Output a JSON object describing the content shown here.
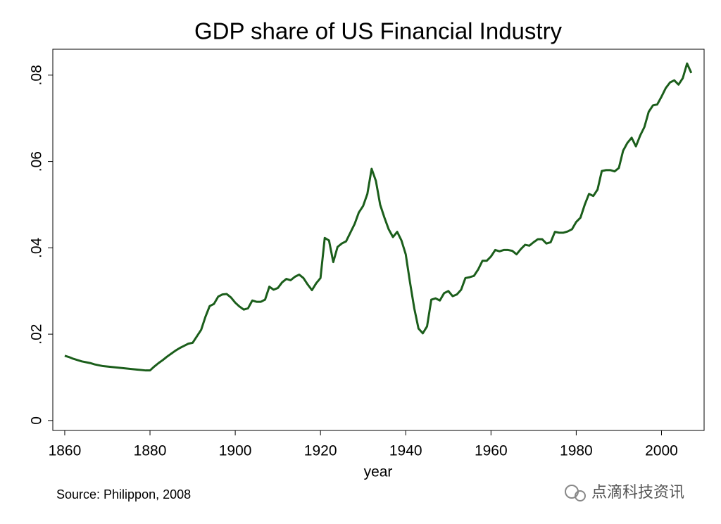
{
  "chart_data": {
    "type": "line",
    "title": "GDP share of US Financial Industry",
    "x_label": "year",
    "note": "Source: Philippon, 2008",
    "watermark": "点滴科技资讯",
    "xlim": [
      1857.2,
      2010
    ],
    "ylim": [
      -0.0023,
      0.086
    ],
    "xticks": [
      1860,
      1880,
      1900,
      1920,
      1940,
      1960,
      1980,
      2000
    ],
    "yticks": [
      0,
      {
        "value": 0.02,
        "label": ".02"
      },
      {
        "value": 0.04,
        "label": ".04"
      },
      {
        "value": 0.06,
        "label": ".06"
      },
      {
        "value": 0.08,
        "label": ".08"
      }
    ],
    "x": [
      1860,
      1861,
      1862,
      1863,
      1864,
      1865,
      1866,
      1867,
      1868,
      1869,
      1870,
      1871,
      1872,
      1873,
      1874,
      1875,
      1876,
      1877,
      1878,
      1879,
      1880,
      1881,
      1882,
      1883,
      1884,
      1885,
      1886,
      1887,
      1888,
      1889,
      1890,
      1891,
      1892,
      1893,
      1894,
      1895,
      1896,
      1897,
      1898,
      1899,
      1900,
      1901,
      1902,
      1903,
      1904,
      1905,
      1906,
      1907,
      1908,
      1909,
      1910,
      1911,
      1912,
      1913,
      1914,
      1915,
      1916,
      1917,
      1918,
      1919,
      1920,
      1921,
      1922,
      1923,
      1924,
      1925,
      1926,
      1927,
      1928,
      1929,
      1930,
      1931,
      1932,
      1933,
      1934,
      1935,
      1936,
      1937,
      1938,
      1939,
      1940,
      1941,
      1942,
      1943,
      1944,
      1945,
      1946,
      1947,
      1948,
      1949,
      1950,
      1951,
      1952,
      1953,
      1954,
      1955,
      1956,
      1957,
      1958,
      1959,
      1960,
      1961,
      1962,
      1963,
      1964,
      1965,
      1966,
      1967,
      1968,
      1969,
      1970,
      1971,
      1972,
      1973,
      1974,
      1975,
      1976,
      1977,
      1978,
      1979,
      1980,
      1981,
      1982,
      1983,
      1984,
      1985,
      1986,
      1987,
      1988,
      1989,
      1990,
      1991,
      1992,
      1993,
      1994,
      1995,
      1996,
      1997,
      1998,
      1999,
      2000,
      2001,
      2002,
      2003,
      2004,
      2005,
      2006,
      2007
    ],
    "series": [
      {
        "name": "GDP share",
        "color": "#1b5e1b",
        "values": [
          0.015,
          0.0147,
          0.0143,
          0.014,
          0.0137,
          0.0135,
          0.0133,
          0.013,
          0.0128,
          0.0126,
          0.0125,
          0.0124,
          0.0123,
          0.0122,
          0.0121,
          0.012,
          0.0119,
          0.0118,
          0.0117,
          0.0116,
          0.0116,
          0.0125,
          0.0133,
          0.014,
          0.0148,
          0.0155,
          0.0162,
          0.0168,
          0.0173,
          0.0178,
          0.018,
          0.0195,
          0.021,
          0.024,
          0.0265,
          0.027,
          0.0287,
          0.0292,
          0.0293,
          0.0285,
          0.0273,
          0.0264,
          0.0257,
          0.026,
          0.0278,
          0.0275,
          0.0275,
          0.028,
          0.031,
          0.0303,
          0.0307,
          0.032,
          0.0328,
          0.0325,
          0.0333,
          0.0338,
          0.033,
          0.0315,
          0.0302,
          0.0318,
          0.033,
          0.0423,
          0.0417,
          0.0367,
          0.0402,
          0.041,
          0.0415,
          0.0435,
          0.0455,
          0.0482,
          0.0497,
          0.0525,
          0.0583,
          0.0555,
          0.05,
          0.047,
          0.0443,
          0.0425,
          0.0437,
          0.0417,
          0.0385,
          0.032,
          0.026,
          0.0213,
          0.0202,
          0.0218,
          0.028,
          0.0283,
          0.0278,
          0.0295,
          0.03,
          0.0288,
          0.0292,
          0.0303,
          0.033,
          0.0332,
          0.0335,
          0.035,
          0.037,
          0.037,
          0.038,
          0.0395,
          0.0392,
          0.0395,
          0.0395,
          0.0393,
          0.0385,
          0.0397,
          0.0407,
          0.0405,
          0.0413,
          0.042,
          0.042,
          0.041,
          0.0413,
          0.0437,
          0.0435,
          0.0435,
          0.0438,
          0.0443,
          0.046,
          0.047,
          0.05,
          0.0525,
          0.052,
          0.0535,
          0.0578,
          0.058,
          0.058,
          0.0577,
          0.0585,
          0.0625,
          0.0643,
          0.0655,
          0.0635,
          0.066,
          0.068,
          0.0715,
          0.073,
          0.0732,
          0.075,
          0.077,
          0.0783,
          0.0788,
          0.0778,
          0.0793,
          0.0827,
          0.0805
        ]
      }
    ]
  }
}
